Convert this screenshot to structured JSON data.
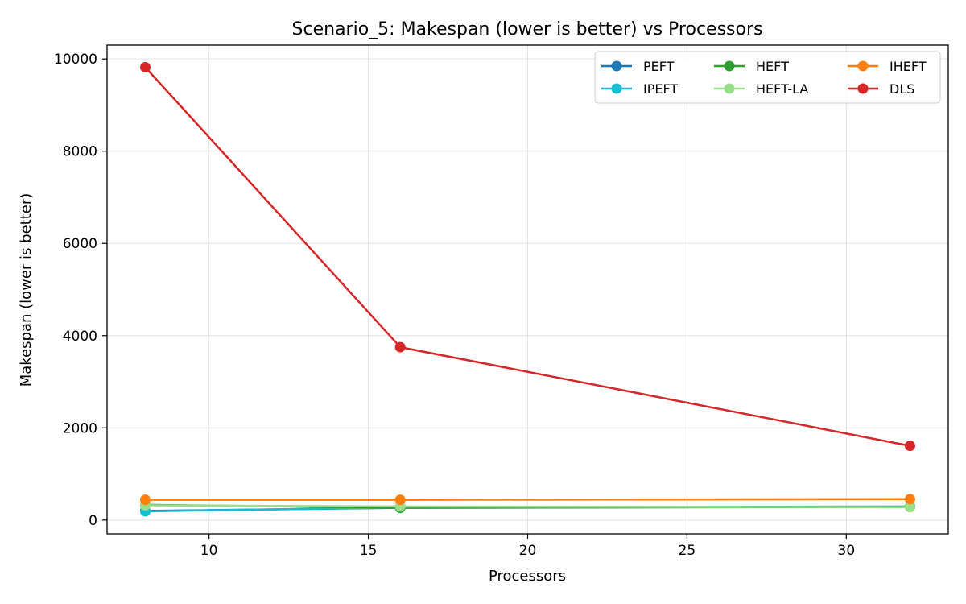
{
  "chart_data": {
    "type": "line",
    "title": "Scenario_5: Makespan (lower is better) vs Processors",
    "xlabel": "Processors",
    "ylabel": "Makespan (lower is better)",
    "x": [
      8,
      16,
      32
    ],
    "xlim": [
      6.8,
      33.2
    ],
    "ylim": [
      -300,
      10300
    ],
    "xticks": [
      10,
      15,
      20,
      25,
      30
    ],
    "yticks": [
      0,
      2000,
      4000,
      6000,
      8000,
      10000
    ],
    "grid": true,
    "legend_position": "top-right",
    "legend_columns": 3,
    "series": [
      {
        "name": "PEFT",
        "color": "#1f77b4",
        "values": [
          200,
          265,
          290
        ]
      },
      {
        "name": "IPEFT",
        "color": "#17becf",
        "values": [
          190,
          275,
          295
        ]
      },
      {
        "name": "HEFT",
        "color": "#2ca02c",
        "values": [
          330,
          270,
          285
        ]
      },
      {
        "name": "HEFT-LA",
        "color": "#98df8a",
        "values": [
          320,
          295,
          280
        ]
      },
      {
        "name": "IHEFT",
        "color": "#ff7f0e",
        "values": [
          440,
          440,
          455
        ]
      },
      {
        "name": "DLS",
        "color": "#d62728",
        "values": [
          9820,
          3750,
          1610
        ]
      }
    ]
  }
}
